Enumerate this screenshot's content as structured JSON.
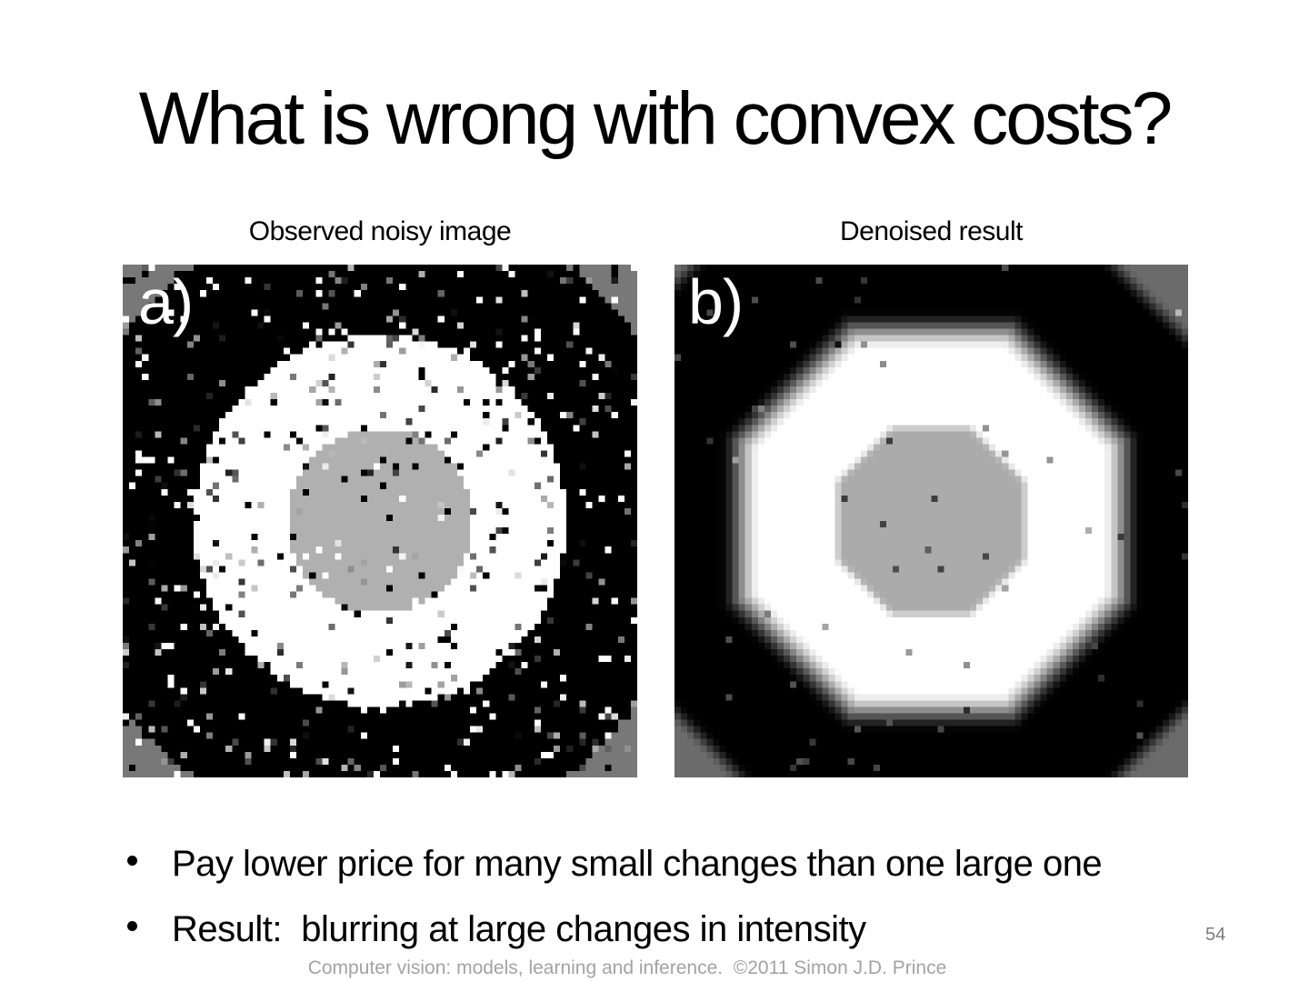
{
  "slide": {
    "title": "What is wrong with convex costs?",
    "bullets": [
      "Pay lower price for many small changes than one large one",
      "Result:  blurring at large changes in intensity"
    ],
    "page_number": "54",
    "footer": "Computer vision: models, learning and inference.  ©2011 Simon J.D. Prince"
  },
  "figures": [
    {
      "label": "a)",
      "caption": "Observed noisy image",
      "render": {
        "type": "noisy_circles",
        "grid": 80,
        "seed": 20110,
        "noise_density": 0.1,
        "disk_radius": 14.5,
        "ring_radius": 29,
        "black_radius": 49.2,
        "disk_gray": "#b0b0b0",
        "corner_gray": "#787878",
        "ring_color": "#ffffff",
        "background": "#000000"
      }
    },
    {
      "label": "b)",
      "caption": "Denoised result",
      "render": {
        "type": "denoised_octagon",
        "grid": 80,
        "seed": 54,
        "noise_density": 0.009,
        "disk_edge0": 13.8,
        "disk_edge1": 15.4,
        "white_end": 26.5,
        "black_start": 33,
        "corner_thresholds": {
          "tl": 52.5,
          "tr": 46.5,
          "bl": 47.5,
          "br": 47
        },
        "corner_soft": 3.5,
        "disk_gray": "#ababab",
        "corner_gray": "#6b6b6b",
        "ring_color": "#ffffff",
        "background": "#000000"
      }
    }
  ]
}
